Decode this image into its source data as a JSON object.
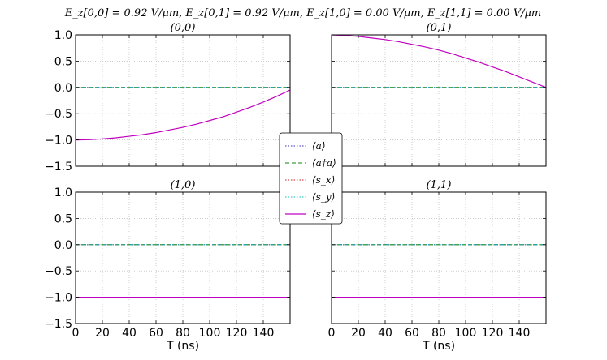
{
  "suptitle": "E_z[0,0] = 0.92 V/μm, E_z[0,1] = 0.92 V/μm, E_z[1,0] = 0.00 V/μm, E_z[1,1] = 0.00 V/μm",
  "xlabel": "T (ns)",
  "xticks": [
    0,
    20,
    40,
    60,
    80,
    100,
    120,
    140
  ],
  "yticks": [
    1.0,
    0.5,
    0.0,
    -0.5,
    -1.0,
    -1.5
  ],
  "xlim": [
    0,
    160
  ],
  "ylim": [
    -1.5,
    1.0
  ],
  "colors": {
    "a": "#3030c0",
    "adag_a": "#108010",
    "s_x": "#d02020",
    "s_y": "#10c0c0",
    "s_z": "#c000c0",
    "grid": "#b0b0b0"
  },
  "legend": {
    "placement": "center",
    "entries": [
      "⟨a⟩",
      "⟨a†a⟩",
      "⟨s_x⟩",
      "⟨s_y⟩",
      "⟨s_z⟩"
    ]
  },
  "chart_data": [
    {
      "type": "line",
      "title": "(0,0)",
      "xlim": [
        0,
        160
      ],
      "ylim": [
        -1.5,
        1.0
      ],
      "grid": true,
      "series": [
        {
          "name": "⟨a⟩",
          "style": "dotted",
          "x": [
            0,
            160
          ],
          "y": [
            0,
            0
          ]
        },
        {
          "name": "⟨a†a⟩",
          "style": "dashed",
          "x": [
            0,
            160
          ],
          "y": [
            0,
            0
          ]
        },
        {
          "name": "⟨s_x⟩",
          "style": "dotted",
          "x": [
            0,
            160
          ],
          "y": [
            0,
            0
          ]
        },
        {
          "name": "⟨s_y⟩",
          "style": "dotted",
          "x": [
            0,
            160
          ],
          "y": [
            0,
            0
          ]
        },
        {
          "name": "⟨s_z⟩",
          "style": "solid",
          "x": [
            0,
            10,
            20,
            30,
            40,
            50,
            60,
            70,
            80,
            90,
            100,
            110,
            120,
            130,
            140,
            150,
            160
          ],
          "y": [
            -1.0,
            -0.995,
            -0.98,
            -0.96,
            -0.93,
            -0.9,
            -0.86,
            -0.81,
            -0.76,
            -0.7,
            -0.63,
            -0.56,
            -0.47,
            -0.38,
            -0.28,
            -0.17,
            -0.05
          ]
        }
      ]
    },
    {
      "type": "line",
      "title": "(0,1)",
      "xlim": [
        0,
        160
      ],
      "ylim": [
        -1.5,
        1.0
      ],
      "grid": true,
      "series": [
        {
          "name": "⟨a⟩",
          "style": "dotted",
          "x": [
            0,
            160
          ],
          "y": [
            0,
            0
          ]
        },
        {
          "name": "⟨a†a⟩",
          "style": "dashed",
          "x": [
            0,
            160
          ],
          "y": [
            0,
            0
          ]
        },
        {
          "name": "⟨s_x⟩",
          "style": "dotted",
          "x": [
            0,
            160
          ],
          "y": [
            0,
            0
          ]
        },
        {
          "name": "⟨s_y⟩",
          "style": "dotted",
          "x": [
            0,
            160
          ],
          "y": [
            0,
            0
          ]
        },
        {
          "name": "⟨s_z⟩",
          "style": "solid",
          "x": [
            0,
            10,
            20,
            30,
            40,
            50,
            60,
            70,
            80,
            90,
            100,
            110,
            120,
            130,
            140,
            150,
            160
          ],
          "y": [
            1.0,
            0.99,
            0.97,
            0.94,
            0.91,
            0.87,
            0.82,
            0.77,
            0.71,
            0.64,
            0.56,
            0.48,
            0.39,
            0.3,
            0.2,
            0.1,
            0.0
          ]
        }
      ]
    },
    {
      "type": "line",
      "title": "(1,0)",
      "xlim": [
        0,
        160
      ],
      "ylim": [
        -1.5,
        1.0
      ],
      "grid": true,
      "series": [
        {
          "name": "⟨a⟩",
          "style": "dotted",
          "x": [
            0,
            160
          ],
          "y": [
            0,
            0
          ]
        },
        {
          "name": "⟨a†a⟩",
          "style": "dashed",
          "x": [
            0,
            160
          ],
          "y": [
            0,
            0
          ]
        },
        {
          "name": "⟨s_x⟩",
          "style": "dotted",
          "x": [
            0,
            160
          ],
          "y": [
            0,
            0
          ]
        },
        {
          "name": "⟨s_y⟩",
          "style": "dotted",
          "x": [
            0,
            160
          ],
          "y": [
            0,
            0
          ]
        },
        {
          "name": "⟨s_z⟩",
          "style": "solid",
          "x": [
            0,
            160
          ],
          "y": [
            -1.0,
            -1.0
          ]
        }
      ]
    },
    {
      "type": "line",
      "title": "(1,1)",
      "xlim": [
        0,
        160
      ],
      "ylim": [
        -1.5,
        1.0
      ],
      "grid": true,
      "series": [
        {
          "name": "⟨a⟩",
          "style": "dotted",
          "x": [
            0,
            160
          ],
          "y": [
            0,
            0
          ]
        },
        {
          "name": "⟨a†a⟩",
          "style": "dashed",
          "x": [
            0,
            160
          ],
          "y": [
            0,
            0
          ]
        },
        {
          "name": "⟨s_x⟩",
          "style": "dotted",
          "x": [
            0,
            160
          ],
          "y": [
            0,
            0
          ]
        },
        {
          "name": "⟨s_y⟩",
          "style": "dotted",
          "x": [
            0,
            160
          ],
          "y": [
            0,
            0
          ]
        },
        {
          "name": "⟨s_z⟩",
          "style": "solid",
          "x": [
            0,
            160
          ],
          "y": [
            -1.0,
            -1.0
          ]
        }
      ]
    }
  ]
}
